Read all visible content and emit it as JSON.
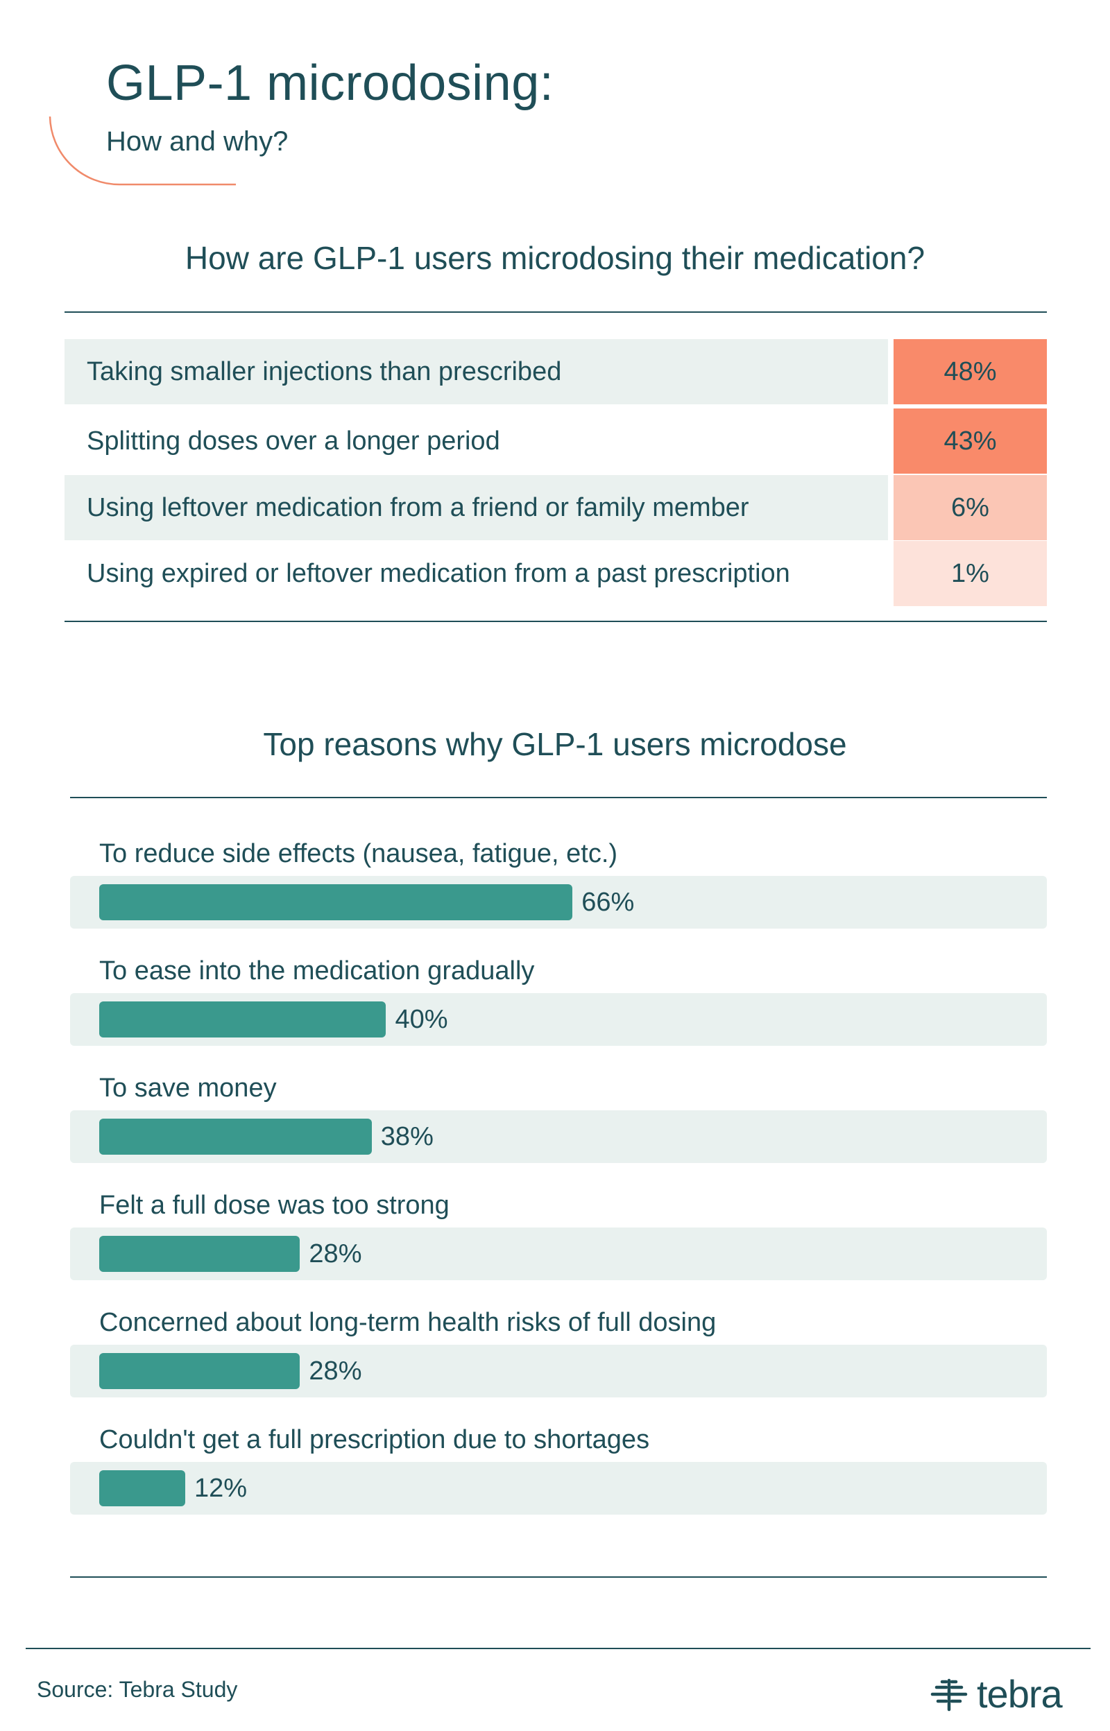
{
  "header": {
    "title": "GLP-1 microdosing:",
    "subtitle": "How and why?"
  },
  "colors": {
    "text": "#1f4e57",
    "accent_arc": "#f08a6a",
    "bar": "#3a998d",
    "track": "#e9f1ef",
    "heat_high": "#f98a6a",
    "heat_mid": "#fbc6b5",
    "heat_low": "#fde2da",
    "row_alt": "#eaf1ef"
  },
  "chart_data": [
    {
      "type": "table",
      "title": "How are GLP-1 users microdosing their medication?",
      "rows": [
        {
          "label": "Taking smaller injections than prescribed",
          "display": "48%",
          "value": 48
        },
        {
          "label": "Splitting doses over a longer period",
          "display": "43%",
          "value": 43
        },
        {
          "label": "Using leftover medication from a friend or family member",
          "display": "6%",
          "value": 6
        },
        {
          "label": "Using expired or leftover medication from a past prescription",
          "display": "1%",
          "value": 1
        }
      ]
    },
    {
      "type": "bar",
      "orientation": "horizontal",
      "title": "Top reasons why GLP-1 users microdose",
      "categories": [
        "To reduce side effects (nausea, fatigue, etc.)",
        "To ease into the medication gradually",
        "To save money",
        "Felt a full dose was too strong",
        "Concerned about long-term health risks of full dosing",
        "Couldn't get a full prescription due to shortages"
      ],
      "values": [
        66,
        40,
        38,
        28,
        28,
        12
      ],
      "display": [
        "66%",
        "40%",
        "38%",
        "28%",
        "28%",
        "12%"
      ],
      "xlim": [
        0,
        100
      ]
    }
  ],
  "footer": {
    "source": "Source: Tebra Study",
    "logo_text": "tebra",
    "logo_icon": "tebra-logo-icon"
  }
}
